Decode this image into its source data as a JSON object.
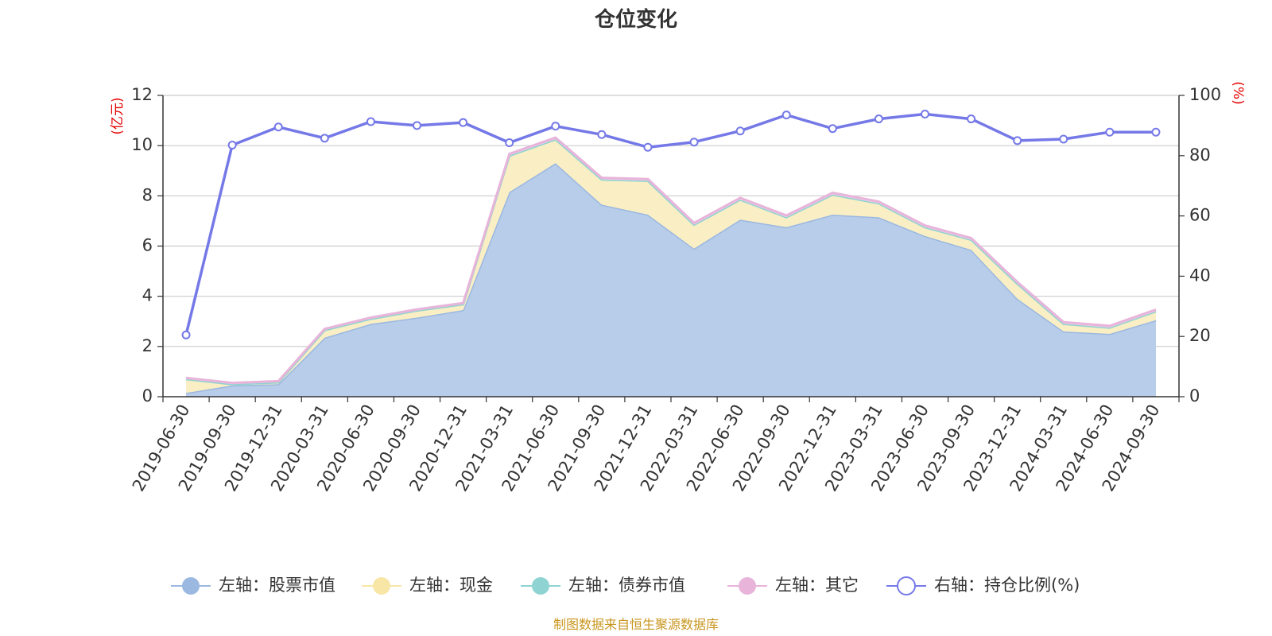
{
  "chart_data": {
    "type": "area",
    "title": "仓位变化",
    "left_unit": "(亿元)",
    "right_unit": "(%)",
    "source": "制图数据来自恒生聚源数据库",
    "categories": [
      "2019-06-30",
      "2019-09-30",
      "2019-12-31",
      "2020-03-31",
      "2020-06-30",
      "2020-09-30",
      "2020-12-31",
      "2021-03-31",
      "2021-06-30",
      "2021-09-30",
      "2021-12-31",
      "2022-03-31",
      "2022-06-30",
      "2022-09-30",
      "2022-12-31",
      "2023-03-31",
      "2023-06-30",
      "2023-09-30",
      "2023-12-31",
      "2024-03-31",
      "2024-06-30",
      "2024-09-30"
    ],
    "left_axis": {
      "min": 0,
      "max": 12,
      "ticks": [
        0,
        2,
        4,
        6,
        8,
        10,
        12
      ]
    },
    "right_axis": {
      "min": 0,
      "max": 100,
      "ticks": [
        0,
        20,
        40,
        60,
        80,
        100
      ]
    },
    "grid": true,
    "legend_position": "bottom",
    "series": [
      {
        "name": "左轴：股票市值",
        "axis": "left",
        "stack": true,
        "color": "#9bb8e0",
        "fill": "#b8cdea",
        "values": [
          0.15,
          0.45,
          0.5,
          2.35,
          2.9,
          3.15,
          3.45,
          8.15,
          9.3,
          7.65,
          7.25,
          5.9,
          7.05,
          6.75,
          7.25,
          7.15,
          6.4,
          5.85,
          3.9,
          2.6,
          2.5,
          3.05
        ]
      },
      {
        "name": "左轴：现金",
        "axis": "left",
        "stack": true,
        "color": "#f7e6a6",
        "fill": "#faefc4",
        "values": [
          0.55,
          0.05,
          0.07,
          0.3,
          0.2,
          0.28,
          0.23,
          1.45,
          0.95,
          1.0,
          1.35,
          0.95,
          0.8,
          0.4,
          0.8,
          0.55,
          0.35,
          0.4,
          0.6,
          0.3,
          0.25,
          0.35
        ]
      },
      {
        "name": "左轴：债券市值",
        "axis": "left",
        "stack": true,
        "color": "#8fd3d3",
        "fill": "#bfe8e8",
        "values": [
          0,
          0,
          0,
          0,
          0,
          0,
          0,
          0,
          0,
          0,
          0,
          0,
          0,
          0,
          0,
          0,
          0,
          0,
          0,
          0,
          0,
          0
        ]
      },
      {
        "name": "左轴：其它",
        "axis": "left",
        "stack": true,
        "color": "#e8b4da",
        "fill": "#f1cfe8",
        "values": [
          0.05,
          0.05,
          0.05,
          0.05,
          0.05,
          0.05,
          0.05,
          0.07,
          0.07,
          0.07,
          0.07,
          0.07,
          0.07,
          0.07,
          0.07,
          0.07,
          0.07,
          0.07,
          0.07,
          0.07,
          0.07,
          0.07
        ]
      },
      {
        "name": "右轴：持仓比例(%)",
        "axis": "right",
        "stack": false,
        "color": "#7579e7",
        "fill": "none",
        "values": [
          20.5,
          83.5,
          89.5,
          85.8,
          91.3,
          90.0,
          91.0,
          84.3,
          89.8,
          87.0,
          82.8,
          84.5,
          88.2,
          93.5,
          89.0,
          92.2,
          93.8,
          92.2,
          85.0,
          85.5,
          87.8,
          87.8
        ]
      }
    ]
  }
}
